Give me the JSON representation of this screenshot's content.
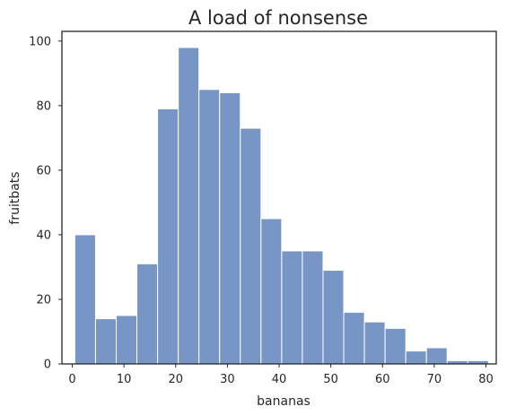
{
  "chart_data": {
    "type": "bar",
    "title": "A load of nonsense",
    "xlabel": "bananas",
    "ylabel": "fruitbats",
    "xlim": [
      -2,
      82
    ],
    "ylim": [
      0,
      103
    ],
    "xticks": [
      0,
      10,
      20,
      30,
      40,
      50,
      60,
      70,
      80
    ],
    "yticks": [
      0,
      20,
      40,
      60,
      80,
      100
    ],
    "bin_edges": [
      0.5,
      4.5,
      8.5,
      12.5,
      16.5,
      20.5,
      24.5,
      28.5,
      32.5,
      36.5,
      40.5,
      44.5,
      48.5,
      52.5,
      56.5,
      60.5,
      64.5,
      68.5,
      72.5,
      76.5,
      80.5
    ],
    "values": [
      40,
      14,
      15,
      31,
      79,
      98,
      85,
      84,
      73,
      45,
      35,
      35,
      29,
      16,
      13,
      11,
      4,
      5,
      1,
      1
    ],
    "bar_color": "#7896c5",
    "bar_edge_color": "#ffffff",
    "grid": false
  }
}
